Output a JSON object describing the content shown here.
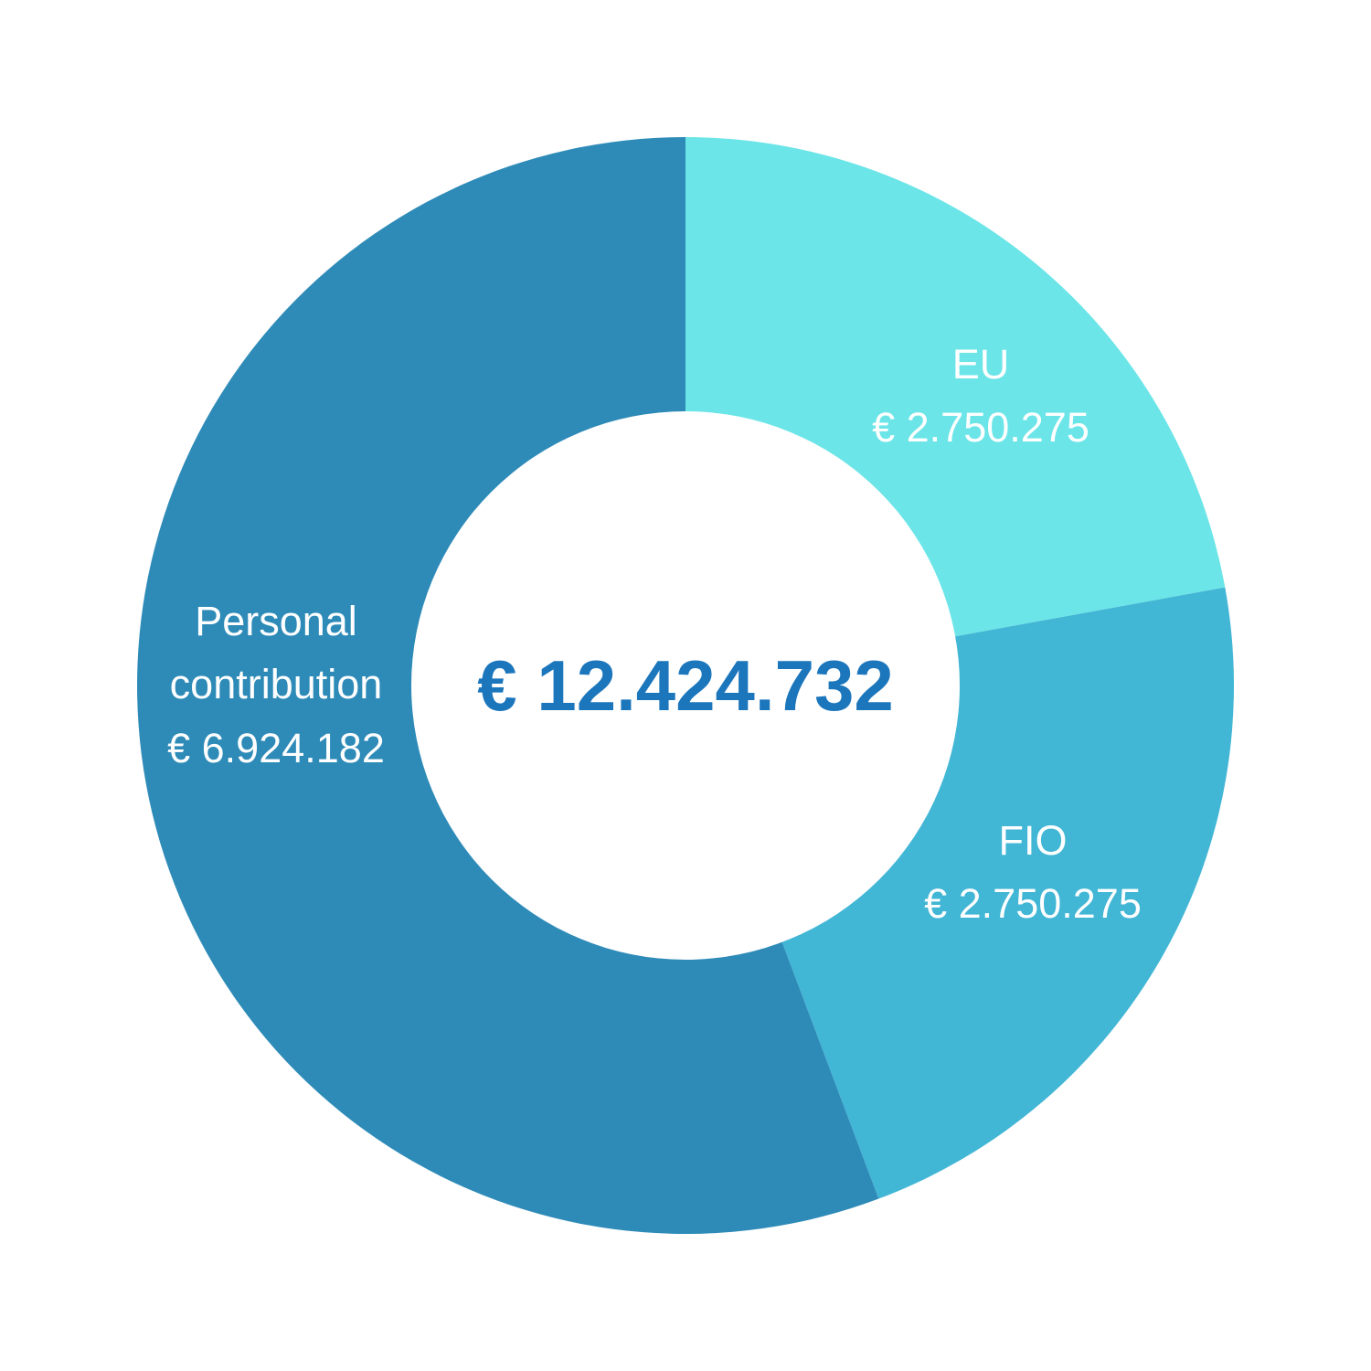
{
  "chart_data": {
    "type": "pie",
    "variant": "donut",
    "total": 12424732,
    "total_label": "€ 12.424.732",
    "start": "top",
    "direction": "clockwise",
    "slices": [
      {
        "label": "EU",
        "value": 2750275,
        "value_label": "€ 2.750.275",
        "color": "#6ce5e8"
      },
      {
        "label": "FIO",
        "value": 2750275,
        "value_label": "€ 2.750.275",
        "color": "#42b6d5"
      },
      {
        "label": "Personal contribution",
        "label_lines": [
          "Personal",
          "contribution"
        ],
        "value": 6924182,
        "value_label": "€ 6.924.182",
        "color": "#2e8bb8"
      }
    ],
    "colors": {
      "background": "#ffffff",
      "label_text": "#ffffff",
      "total_text": "#1c76bc"
    }
  }
}
